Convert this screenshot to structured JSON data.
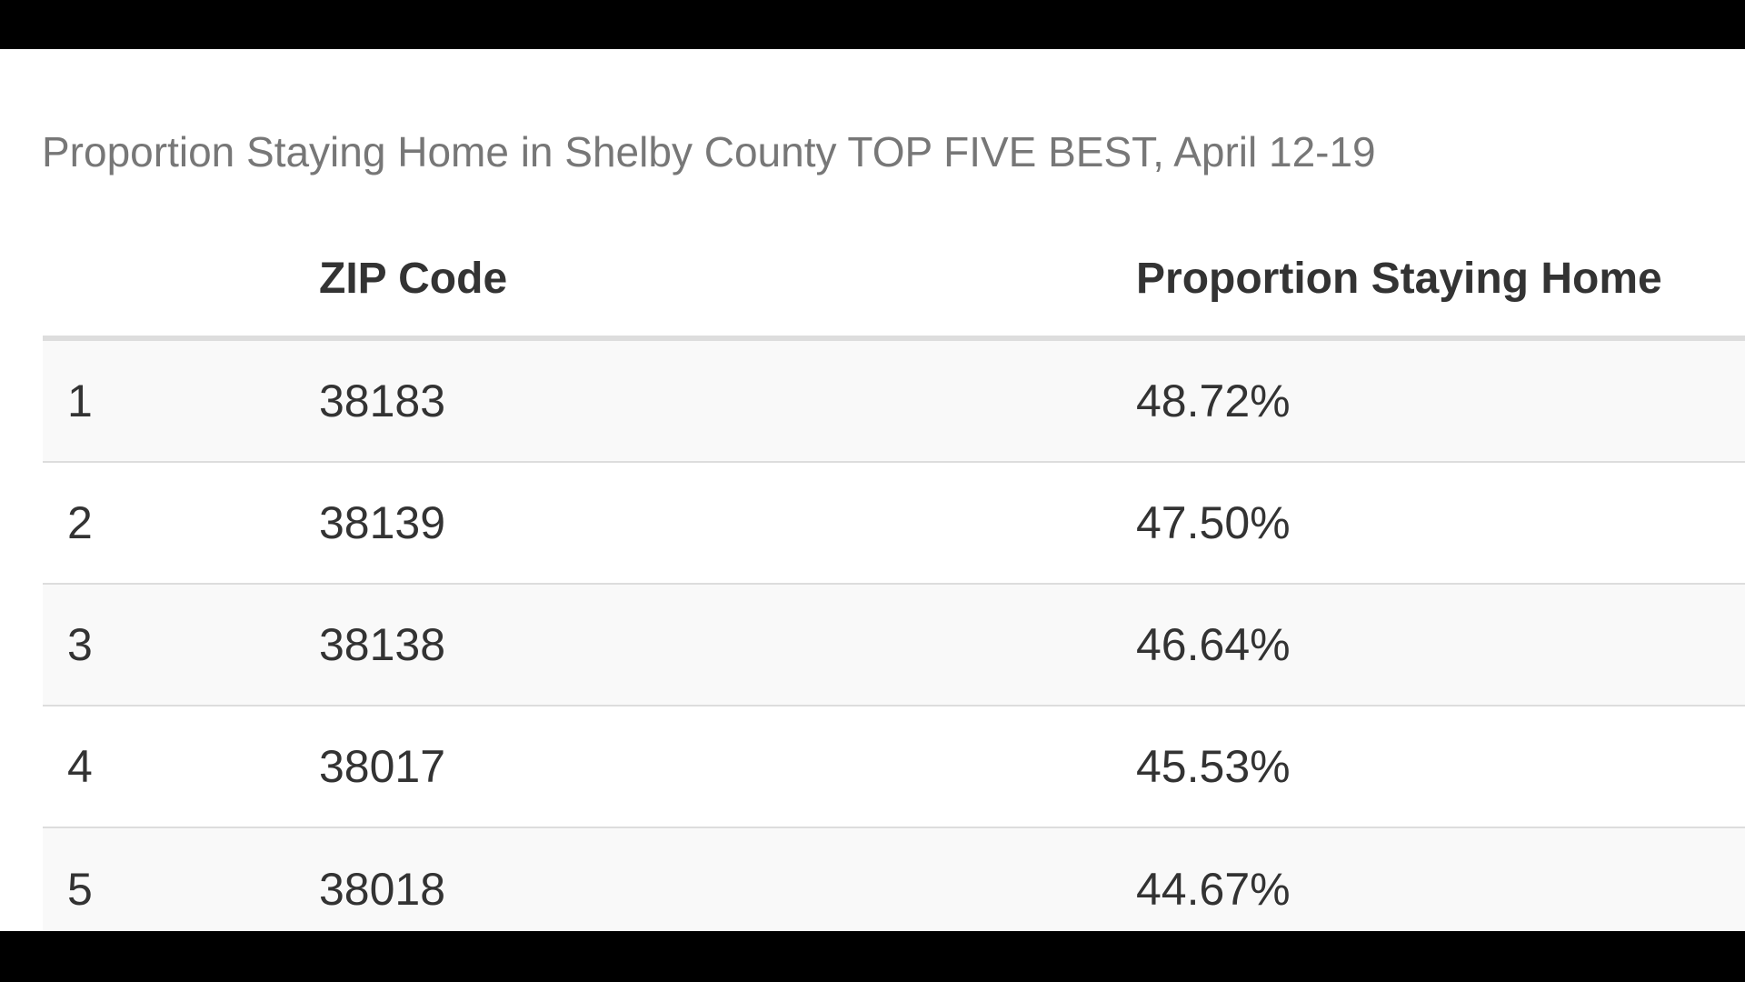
{
  "chart_data": {
    "type": "table",
    "title": "Proportion Staying Home in Shelby County TOP FIVE BEST, April 12-19",
    "columns": [
      "",
      "ZIP Code",
      "Proportion Staying Home"
    ],
    "rows": [
      {
        "rank": "1",
        "zip": "38183",
        "proportion": "48.72%"
      },
      {
        "rank": "2",
        "zip": "38139",
        "proportion": "47.50%"
      },
      {
        "rank": "3",
        "zip": "38138",
        "proportion": "46.64%"
      },
      {
        "rank": "4",
        "zip": "38017",
        "proportion": "45.53%"
      },
      {
        "rank": "5",
        "zip": "38018",
        "proportion": "44.67%"
      }
    ]
  },
  "colors": {
    "background": "#000000",
    "panel": "#ffffff",
    "caption_text": "#777777",
    "body_text": "#333333",
    "stripe": "#f9f9f9",
    "rule": "#dddddd"
  }
}
